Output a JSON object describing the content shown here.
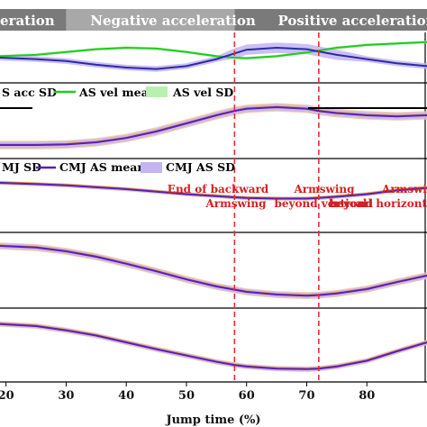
{
  "phases": [
    {
      "label": "eration",
      "start": 0,
      "end": 30,
      "color": "#7a7a7a"
    },
    {
      "label": "Negative acceleration",
      "start": 30,
      "end": 58,
      "color": "#a8a8a8"
    },
    {
      "label": "Positive acceleration",
      "start": 58,
      "end": 90,
      "color": "#7a7a7a"
    }
  ],
  "legend_row1": {
    "acc_sd": "S acc SD",
    "vel_mean": "AS vel mean",
    "vel_sd": "AS vel SD"
  },
  "legend_row2": {
    "cmj_sd_partial": "MJ SD",
    "cmj_as_mean": "CMJ AS mean",
    "cmj_as_sd": "CMJ AS SD"
  },
  "events": [
    {
      "x": 58,
      "line1": "End of backward",
      "line2": "Armswing"
    },
    {
      "x": 72,
      "line1": "Armswing",
      "line2": "beyond vertical"
    },
    {
      "x": 72,
      "line1": "",
      "line2": "beyond"
    },
    {
      "x": 80,
      "line1": "Armswi",
      "line2": "beyond horizont"
    }
  ],
  "xaxis": {
    "label": "Jump time (%)",
    "ticks": [
      "20",
      "30",
      "40",
      "50",
      "60",
      "70",
      "80"
    ]
  },
  "colors": {
    "blue_mean": "#2a2aa8",
    "purple_mean": "#5a1fb8",
    "green_mean": "#1fcc1f",
    "purple_sd": "#c4b4f0",
    "orange_sd": "#f4c79a",
    "green_sd": "#b8f0b0",
    "event_line": "#e03030"
  },
  "chart_data": {
    "type": "line",
    "xlabel": "Jump time (%)",
    "xlim": [
      19,
      90
    ],
    "x": [
      19,
      25,
      30,
      35,
      40,
      45,
      50,
      55,
      58,
      60,
      65,
      70,
      72,
      75,
      80,
      85,
      90
    ],
    "panels": [
      {
        "name": "panel1",
        "series": [
          {
            "name": "AS vel mean",
            "values": [
              0.55,
              0.6,
              0.7,
              0.8,
              0.85,
              0.82,
              0.7,
              0.55,
              0.5,
              0.48,
              0.55,
              0.68,
              0.75,
              0.85,
              0.95,
              1.0,
              1.05
            ]
          },
          {
            "name": "",
            "values": [
              0.5,
              0.45,
              0.38,
              0.25,
              0.15,
              0.1,
              0.2,
              0.45,
              0.65,
              0.78,
              0.85,
              0.8,
              0.72,
              0.6,
              0.45,
              0.3,
              0.2
            ]
          }
        ]
      },
      {
        "name": "panel2",
        "series": [
          {
            "name": "",
            "values": [
              0.05,
              0.05,
              0.06,
              0.1,
              0.18,
              0.3,
              0.45,
              0.6,
              0.68,
              0.72,
              0.75,
              0.72,
              0.68,
              0.64,
              0.6,
              0.58,
              0.6
            ]
          }
        ]
      },
      {
        "name": "panel3",
        "series": [
          {
            "name": "CMJ AS mean",
            "values": [
              0.7,
              0.68,
              0.66,
              0.63,
              0.6,
              0.56,
              0.52,
              0.49,
              0.47,
              0.46,
              0.45,
              0.45,
              0.46,
              0.48,
              0.52,
              0.58,
              0.62
            ]
          }
        ]
      },
      {
        "name": "panel4",
        "series": [
          {
            "name": "",
            "values": [
              0.95,
              0.92,
              0.85,
              0.75,
              0.62,
              0.48,
              0.33,
              0.2,
              0.14,
              0.1,
              0.05,
              0.03,
              0.04,
              0.07,
              0.15,
              0.28,
              0.4
            ]
          }
        ]
      },
      {
        "name": "panel5",
        "series": [
          {
            "name": "",
            "values": [
              0.9,
              0.86,
              0.78,
              0.68,
              0.55,
              0.42,
              0.3,
              0.18,
              0.12,
              0.09,
              0.05,
              0.04,
              0.05,
              0.09,
              0.2,
              0.38,
              0.55
            ]
          }
        ]
      }
    ]
  }
}
